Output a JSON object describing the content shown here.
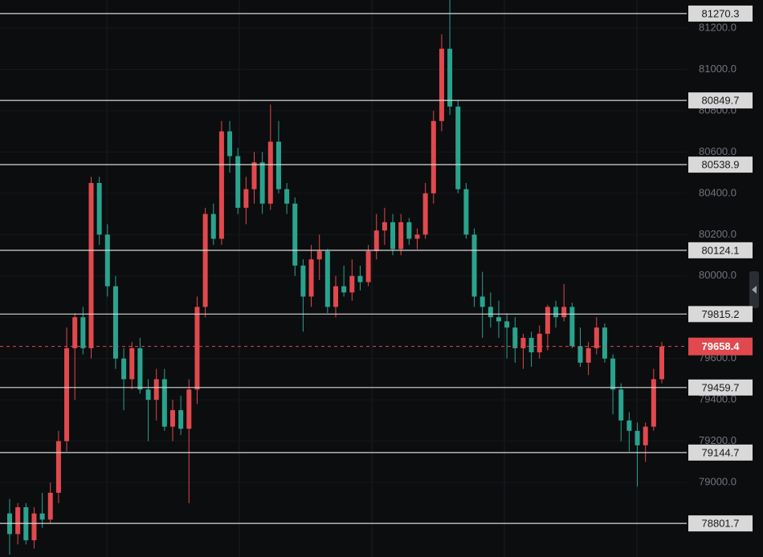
{
  "chart_data": {
    "type": "candlestick",
    "up_color": "#e0494d",
    "down_color": "#2aa38e",
    "ylim": [
      78639,
      81336
    ],
    "yticks": [
      {
        "value": 79000,
        "label": "79000.0"
      },
      {
        "value": 79200,
        "label": "79200.0"
      },
      {
        "value": 79400,
        "label": "79400.0"
      },
      {
        "value": 79600,
        "label": "79600.0"
      },
      {
        "value": 79800,
        "label": "79800.0"
      },
      {
        "value": 80000,
        "label": "80000.0"
      },
      {
        "value": 80200,
        "label": "80200.0"
      },
      {
        "value": 80400,
        "label": "80400.0"
      },
      {
        "value": 80600,
        "label": "80600.0"
      },
      {
        "value": 80800,
        "label": "80800.0"
      },
      {
        "value": 81000,
        "label": "81000.0"
      },
      {
        "value": 81200,
        "label": "81200.0"
      }
    ],
    "levels": [
      81270.3,
      80849.7,
      80538.9,
      80124.1,
      79815.2,
      79459.7,
      79144.7,
      78801.7
    ],
    "current_price": 79658.4,
    "ohlc": [
      [
        78850,
        78920,
        78650,
        78750
      ],
      [
        78750,
        78900,
        78700,
        78880
      ],
      [
        78880,
        78900,
        78700,
        78720
      ],
      [
        78720,
        78880,
        78680,
        78850
      ],
      [
        78850,
        78950,
        78780,
        78820
      ],
      [
        78820,
        79000,
        78800,
        78950
      ],
      [
        78950,
        79250,
        78900,
        79200
      ],
      [
        79200,
        79750,
        79150,
        79650
      ],
      [
        79650,
        79820,
        79400,
        79800
      ],
      [
        79800,
        79850,
        79620,
        79650
      ],
      [
        79650,
        80480,
        79600,
        80450
      ],
      [
        80450,
        80480,
        80150,
        80200
      ],
      [
        80200,
        80250,
        79900,
        79950
      ],
      [
        79950,
        80000,
        79550,
        79600
      ],
      [
        79600,
        79650,
        79350,
        79500
      ],
      [
        79500,
        79680,
        79450,
        79650
      ],
      [
        79650,
        79700,
        79430,
        79450
      ],
      [
        79450,
        79500,
        79200,
        79400
      ],
      [
        79400,
        79550,
        79300,
        79500
      ],
      [
        79500,
        79550,
        79250,
        79270
      ],
      [
        79270,
        79400,
        79200,
        79350
      ],
      [
        79350,
        79420,
        79230,
        79260
      ],
      [
        79260,
        79500,
        78900,
        79450
      ],
      [
        79450,
        79900,
        79380,
        79850
      ],
      [
        79850,
        80330,
        79800,
        80300
      ],
      [
        80300,
        80350,
        80150,
        80180
      ],
      [
        80180,
        80750,
        80150,
        80700
      ],
      [
        80700,
        80750,
        80500,
        80580
      ],
      [
        80580,
        80620,
        80300,
        80330
      ],
      [
        80330,
        80480,
        80250,
        80420
      ],
      [
        80420,
        80600,
        80350,
        80550
      ],
      [
        80550,
        80600,
        80300,
        80350
      ],
      [
        80350,
        80830,
        80320,
        80650
      ],
      [
        80650,
        80750,
        80400,
        80420
      ],
      [
        80420,
        80450,
        80300,
        80350
      ],
      [
        80350,
        80380,
        80000,
        80050
      ],
      [
        80050,
        80080,
        79730,
        79900
      ],
      [
        79900,
        80150,
        79850,
        80080
      ],
      [
        80080,
        80200,
        79980,
        80120
      ],
      [
        80120,
        80130,
        79820,
        79850
      ],
      [
        79850,
        80000,
        79800,
        79950
      ],
      [
        79950,
        80050,
        79900,
        79920
      ],
      [
        79920,
        80080,
        79880,
        80000
      ],
      [
        80000,
        80050,
        79930,
        79970
      ],
      [
        79970,
        80150,
        79950,
        80120
      ],
      [
        80120,
        80300,
        80080,
        80220
      ],
      [
        80220,
        80330,
        80150,
        80260
      ],
      [
        80260,
        80300,
        80100,
        80130
      ],
      [
        80130,
        80300,
        80100,
        80260
      ],
      [
        80260,
        80280,
        80150,
        80180
      ],
      [
        80180,
        80230,
        80130,
        80200
      ],
      [
        80200,
        80450,
        80180,
        80400
      ],
      [
        80400,
        80800,
        80350,
        80750
      ],
      [
        80750,
        81170,
        80700,
        81100
      ],
      [
        81100,
        81340,
        80780,
        80820
      ],
      [
        80820,
        80850,
        80400,
        80420
      ],
      [
        80420,
        80450,
        80180,
        80200
      ],
      [
        80200,
        80230,
        79850,
        79900
      ],
      [
        79900,
        80020,
        79700,
        79850
      ],
      [
        79850,
        79920,
        79750,
        79800
      ],
      [
        79800,
        79880,
        79700,
        79780
      ],
      [
        79780,
        79820,
        79600,
        79750
      ],
      [
        79750,
        79800,
        79580,
        79650
      ],
      [
        79650,
        79720,
        79550,
        79700
      ],
      [
        79700,
        79730,
        79560,
        79630
      ],
      [
        79630,
        79760,
        79600,
        79720
      ],
      [
        79720,
        79860,
        79640,
        79850
      ],
      [
        79850,
        79880,
        79750,
        79800
      ],
      [
        79800,
        79960,
        79780,
        79850
      ],
      [
        79850,
        79870,
        79650,
        79660
      ],
      [
        79660,
        79750,
        79560,
        79580
      ],
      [
        79580,
        79680,
        79520,
        79650
      ],
      [
        79650,
        79800,
        79620,
        79750
      ],
      [
        79750,
        79770,
        79580,
        79600
      ],
      [
        79600,
        79620,
        79330,
        79450
      ],
      [
        79450,
        79480,
        79200,
        79300
      ],
      [
        79300,
        79340,
        79150,
        79250
      ],
      [
        79250,
        79290,
        78980,
        79180
      ],
      [
        79180,
        79290,
        79100,
        79270
      ],
      [
        79270,
        79550,
        79250,
        79500
      ],
      [
        79500,
        79680,
        79480,
        79658.4
      ]
    ]
  }
}
